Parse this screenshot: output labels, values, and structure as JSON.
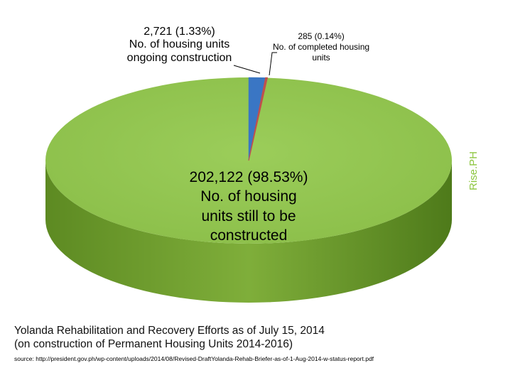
{
  "chart_data": {
    "type": "pie",
    "title": [
      "Yolanda Rehabilitation and Recovery Efforts as of July 15, 2014",
      "(on construction of Permanent Housing Units 2014-2016)"
    ],
    "source": "source: http://president.gov.ph/wp-content/uploads/2014/08/Revised-DraftYolanda-Rehab-Briefer-as-of-1-Aug-2014-w-status-report.pdf",
    "watermark": "Rise.PH",
    "slices": [
      {
        "label_lines": [
          "No. of housing units",
          "ongoing construction"
        ],
        "value": 2721,
        "value_text": "2,721 (1.33%)",
        "percent": 1.33,
        "color": "#3a76c4"
      },
      {
        "label_lines": [
          "No. of completed housing",
          "units"
        ],
        "value": 285,
        "value_text": "285 (0.14%)",
        "percent": 0.14,
        "color": "#c0504d"
      },
      {
        "label_lines": [
          "No. of housing",
          "units still to be",
          "constructed"
        ],
        "value": 202122,
        "value_text": "202,122 (98.53%)",
        "percent": 98.53,
        "color": "#92c152"
      }
    ]
  }
}
